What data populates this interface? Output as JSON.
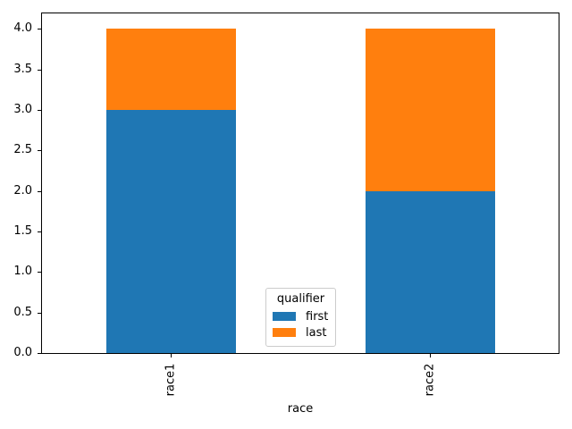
{
  "chart_data": {
    "type": "bar",
    "stacked": true,
    "orientation": "vertical",
    "categories": [
      "race1",
      "race2"
    ],
    "series": [
      {
        "name": "first",
        "color": "#1f77b4",
        "values": [
          3,
          2
        ]
      },
      {
        "name": "last",
        "color": "#ff7f0e",
        "values": [
          1,
          2
        ]
      }
    ],
    "title": "",
    "xlabel": "race",
    "ylabel": "",
    "ylim": [
      0,
      4.2
    ],
    "yticks": [
      0.0,
      0.5,
      1.0,
      1.5,
      2.0,
      2.5,
      3.0,
      3.5,
      4.0
    ],
    "ytick_labels": [
      "0.0",
      "0.5",
      "1.0",
      "1.5",
      "2.0",
      "2.5",
      "3.0",
      "3.5",
      "4.0"
    ],
    "xtick_rotation": 90,
    "grid": false,
    "background_color": "#ffffff",
    "spine_color": "#000000",
    "legend": {
      "title": "qualifier",
      "position": "lower center",
      "entries": [
        {
          "label": "first",
          "color": "#1f77b4"
        },
        {
          "label": "last",
          "color": "#ff7f0e"
        }
      ]
    }
  }
}
